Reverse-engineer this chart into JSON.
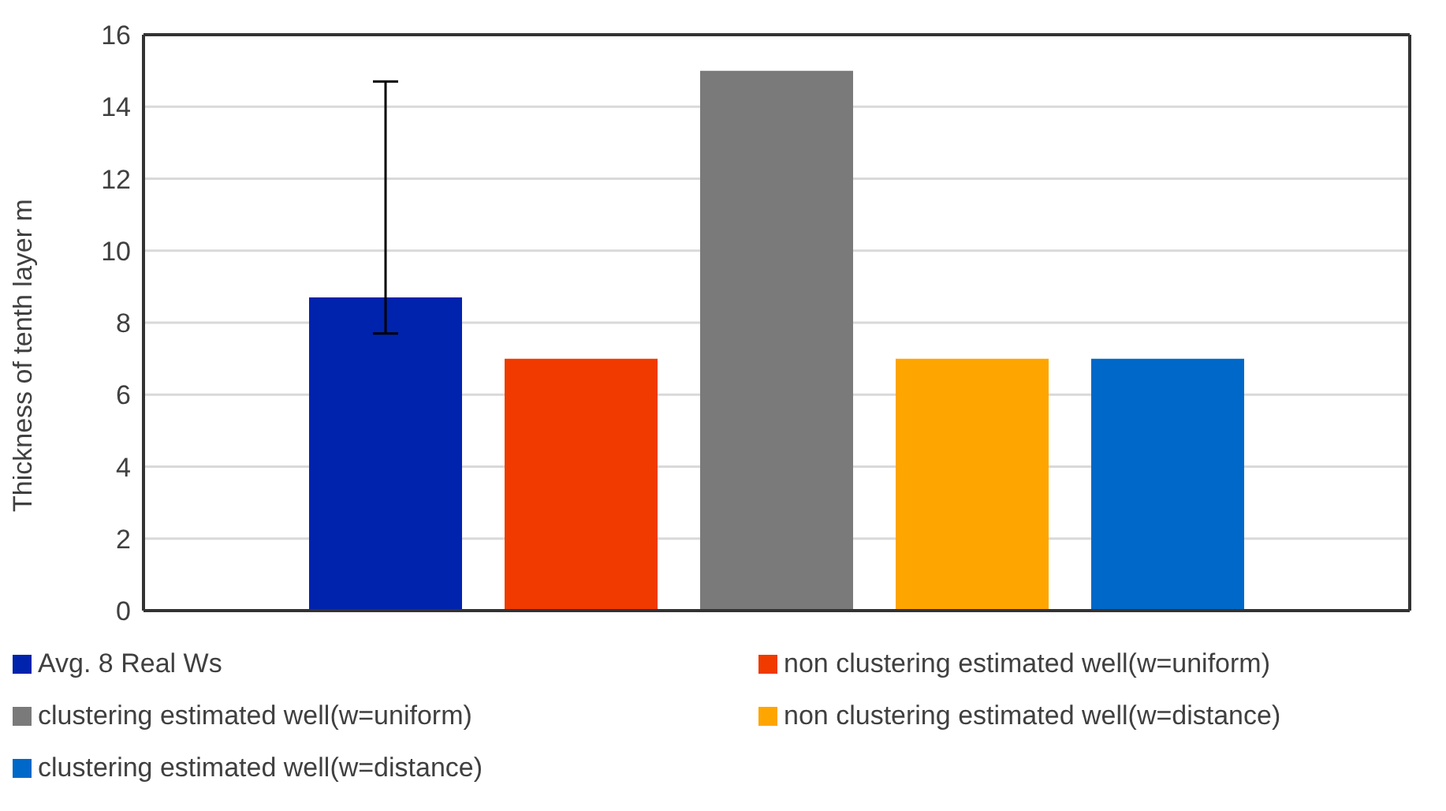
{
  "chart_data": {
    "type": "bar",
    "ylabel": "Thickness of tenth layer   m",
    "categories": [
      null
    ],
    "series": [
      {
        "name": "Avg. 8 Real Ws",
        "color": "#0023ad",
        "values": [
          8.7
        ],
        "errors": [
          [
            7.7,
            14.7
          ]
        ]
      },
      {
        "name": "non clustering estimated well(w=uniform)",
        "color": "#f03a00",
        "values": [
          7
        ]
      },
      {
        "name": "clustering estimated well(w=uniform)",
        "color": "#7a7a7a",
        "values": [
          15
        ]
      },
      {
        "name": "non clustering estimated well(w=distance)",
        "color": "#ffa500",
        "values": [
          7
        ]
      },
      {
        "name": "clustering estimated well(w=distance)",
        "color": "#0068c8",
        "values": [
          7
        ]
      }
    ],
    "ylim": [
      0,
      16
    ],
    "yticks": [
      0,
      2,
      4,
      6,
      8,
      10,
      12,
      14,
      16
    ],
    "grid": "y",
    "legend": "bottom"
  }
}
